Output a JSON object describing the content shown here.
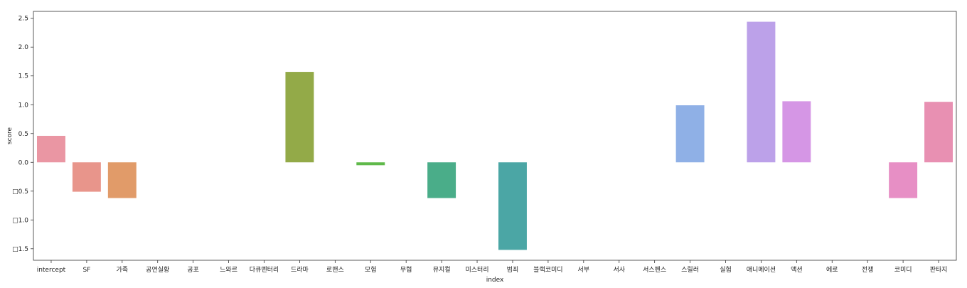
{
  "chart_data": {
    "type": "bar",
    "title": "",
    "xlabel": "index",
    "ylabel": "score",
    "ylim": [
      -1.7,
      2.62
    ],
    "yticks": [
      2.5,
      2.0,
      1.5,
      1.0,
      0.5,
      0.0,
      -0.5,
      -1.0,
      -1.5
    ],
    "ytick_labels": [
      "2.5",
      "2.0",
      "1.5",
      "1.0",
      "0.5",
      "0.0",
      "□0.5",
      "□1.0",
      "□1.5"
    ],
    "grid": false,
    "legend": "none",
    "categories": [
      "intercept",
      "SF",
      "가족",
      "공연실황",
      "공포",
      "느와르",
      "다큐멘터리",
      "드라마",
      "로맨스",
      "모험",
      "무협",
      "뮤지컬",
      "미스터리",
      "범죄",
      "블랙코미디",
      "서부",
      "서사",
      "서스펜스",
      "스릴러",
      "실험",
      "애니메이션",
      "액션",
      "에로",
      "전쟁",
      "코미디",
      "판타지"
    ],
    "values": [
      0.46,
      -0.51,
      -0.62,
      0,
      0,
      0,
      0,
      1.57,
      0,
      -0.05,
      0,
      -0.62,
      0,
      -1.52,
      0,
      0,
      0,
      0,
      0.99,
      0,
      2.44,
      1.06,
      0,
      0,
      -0.62,
      1.05
    ],
    "colors": [
      "#ea96a3",
      "#e8958b",
      "#e19b69",
      "#d1a456",
      "#c2a55a",
      "#b1ab55",
      "#a3b14f",
      "#93aa48",
      "#7ab84f",
      "#5fb94a",
      "#4bb471",
      "#4aad89",
      "#4aab98",
      "#4ba6a5",
      "#4ea2b2",
      "#53a0c3",
      "#6aa2db",
      "#7ca7e8",
      "#8fb0e6",
      "#a8a8ea",
      "#bca1e9",
      "#d596e5",
      "#e494d7",
      "#e88fcc",
      "#e78fc5",
      "#e890b2"
    ]
  }
}
